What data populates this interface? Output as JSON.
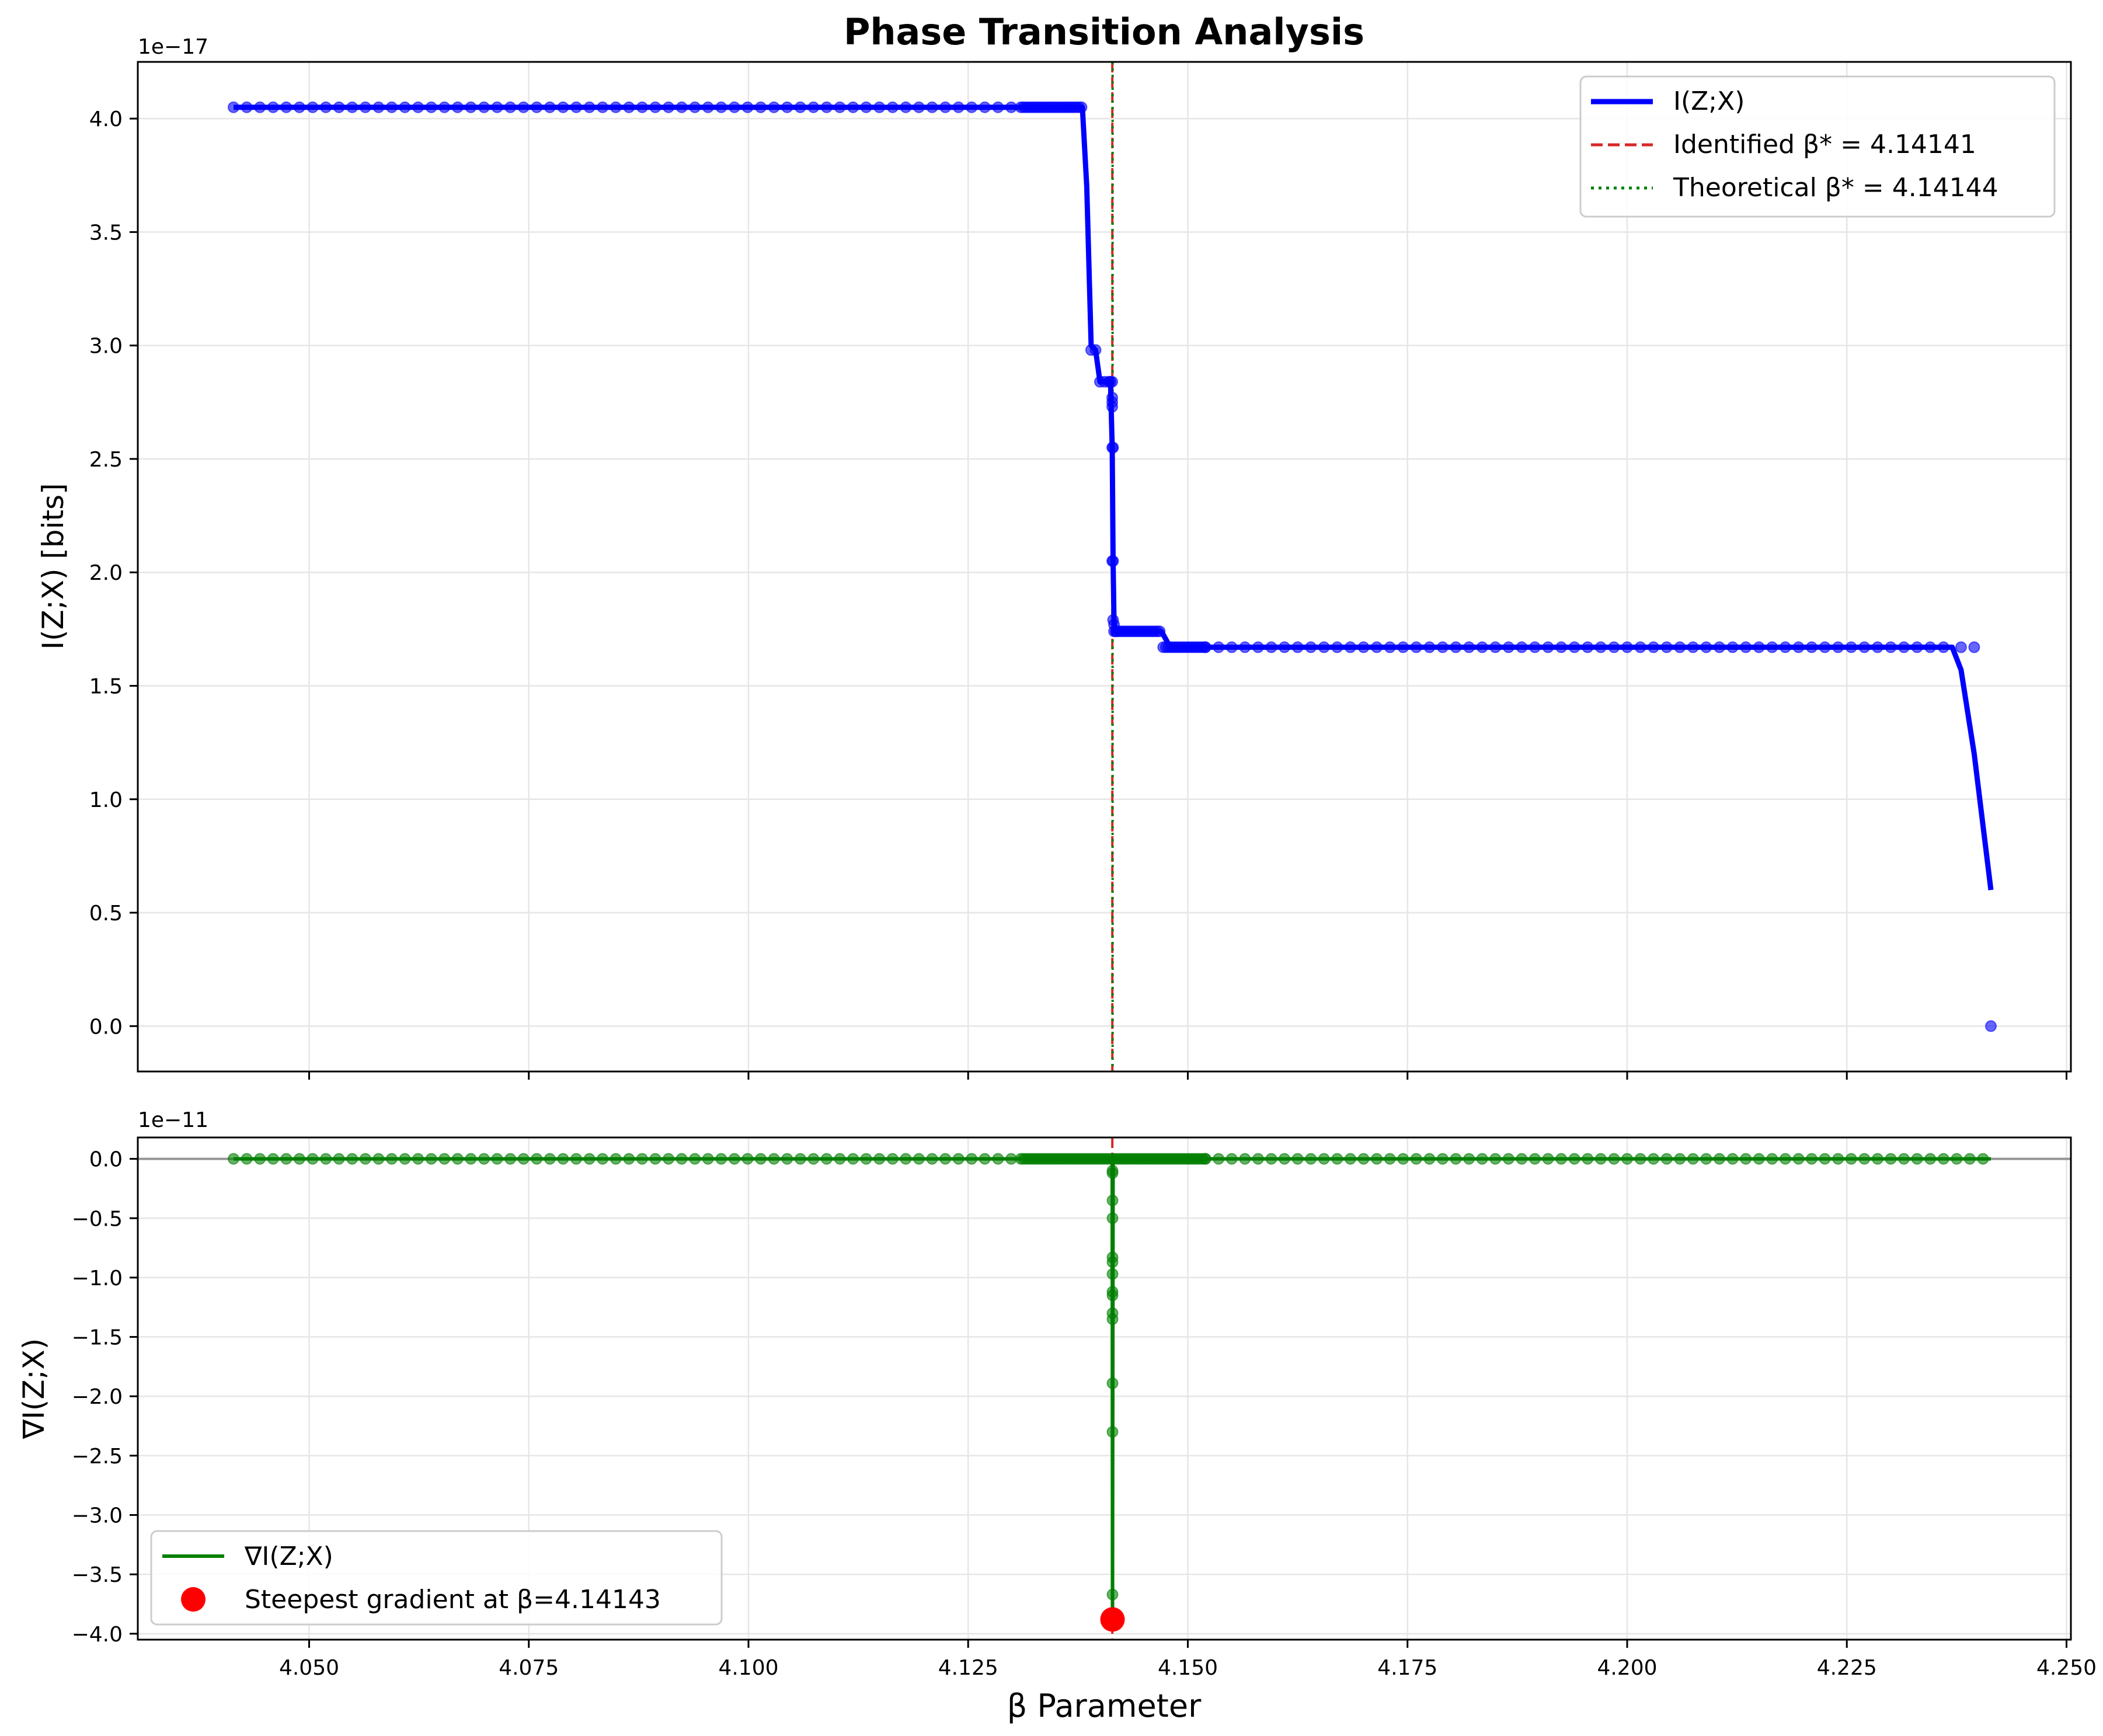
{
  "figure": {
    "title": "Phase Transition Analysis"
  },
  "chart_data": [
    {
      "type": "line",
      "title": "Phase Transition Analysis",
      "xlabel": "",
      "ylabel": "I(Z;X) [bits]",
      "offset_text": "1e−17",
      "xlim": [
        4.0305,
        4.2505
      ],
      "ylim": [
        -0.2,
        4.25
      ],
      "y_scale": "1e-17",
      "xticks": [
        4.05,
        4.075,
        4.1,
        4.125,
        4.15,
        4.175,
        4.2,
        4.225,
        4.25
      ],
      "yticks": [
        0.0,
        0.5,
        1.0,
        1.5,
        2.0,
        2.5,
        3.0,
        3.5,
        4.0
      ],
      "ytick_labels": [
        "0.0",
        "0.5",
        "1.0",
        "1.5",
        "2.0",
        "2.5",
        "3.0",
        "3.5",
        "4.0"
      ],
      "grid": true,
      "legend_position": "upper-right",
      "colors": {
        "line": "#0000ff",
        "identified": "#d62728",
        "theoretical": "#007f00"
      },
      "series": [
        {
          "name": "I(Z;X)",
          "style": "solid",
          "x": [
            4.0414,
            4.1305,
            4.137,
            4.138,
            4.1385,
            4.139,
            4.1395,
            4.14,
            4.1405,
            4.1412,
            4.1414,
            4.1415,
            4.1416,
            4.1418,
            4.142,
            4.145,
            4.147,
            4.148,
            4.152,
            4.235,
            4.237,
            4.238,
            4.2395,
            4.2414
          ],
          "y": [
            4.05,
            4.05,
            4.05,
            4.05,
            3.7,
            3.0,
            2.98,
            2.84,
            2.84,
            2.84,
            2.55,
            2.05,
            1.78,
            1.74,
            1.74,
            1.74,
            1.74,
            1.67,
            1.67,
            1.67,
            1.67,
            1.57,
            1.2,
            0.6
          ]
        },
        {
          "name": "Identified β* = 4.14141",
          "type": "vline",
          "style": "dashed",
          "x": 4.14141
        },
        {
          "name": "Theoretical β* = 4.14144",
          "type": "vline",
          "style": "dotted",
          "x": 4.14144
        }
      ],
      "markers": {
        "x_sparse_left": {
          "start": 4.0414,
          "end": 4.1305,
          "step": 0.0015
        },
        "x_dense_left": {
          "start": 4.131,
          "end": 4.138,
          "step": 0.0003
        },
        "cluster": [
          {
            "x": 4.139,
            "y": 2.98
          },
          {
            "x": 4.1395,
            "y": 2.98
          },
          {
            "x": 4.14,
            "y": 2.84
          },
          {
            "x": 4.1405,
            "y": 2.84
          },
          {
            "x": 4.141,
            "y": 2.84
          },
          {
            "x": 4.1412,
            "y": 2.84
          },
          {
            "x": 4.1414,
            "y": 2.84
          },
          {
            "x": 4.1414,
            "y": 2.77
          },
          {
            "x": 4.1414,
            "y": 2.75
          },
          {
            "x": 4.1414,
            "y": 2.73
          },
          {
            "x": 4.1414,
            "y": 2.55
          },
          {
            "x": 4.1415,
            "y": 2.05
          },
          {
            "x": 4.1415,
            "y": 1.79
          },
          {
            "x": 4.1416,
            "y": 1.77
          },
          {
            "x": 4.1414,
            "y": 2.05
          },
          {
            "x": 4.1415,
            "y": 2.55
          },
          {
            "x": 4.1416,
            "y": 1.74
          },
          {
            "x": 4.1418,
            "y": 1.74
          }
        ],
        "x_plateau_mid": {
          "start": 4.142,
          "end": 4.147,
          "step": 0.0003,
          "y": 1.74
        },
        "x_plateau_low_dense": {
          "start": 4.1472,
          "end": 4.152,
          "step": 0.0003,
          "y": 1.67
        },
        "x_plateau_low_sparse": {
          "start": 4.152,
          "end": 4.237,
          "step": 0.0015,
          "y": 1.67
        },
        "tail": [
          {
            "x": 4.238,
            "y": 1.67
          },
          {
            "x": 4.2395,
            "y": 1.67
          },
          {
            "x": 4.2414,
            "y": 0.0
          }
        ]
      }
    },
    {
      "type": "line",
      "xlabel": "β Parameter",
      "ylabel": "∇I(Z;X)",
      "offset_text": "1e−11",
      "xlim": [
        4.0305,
        4.2505
      ],
      "ylim": [
        -4.05,
        0.18
      ],
      "y_scale": "1e-11",
      "xticks": [
        4.05,
        4.075,
        4.1,
        4.125,
        4.15,
        4.175,
        4.2,
        4.225,
        4.25
      ],
      "xtick_labels": [
        "4.050",
        "4.075",
        "4.100",
        "4.125",
        "4.150",
        "4.175",
        "4.200",
        "4.225",
        "4.250"
      ],
      "yticks": [
        0.0,
        -0.5,
        -1.0,
        -1.5,
        -2.0,
        -2.5,
        -3.0,
        -3.5,
        -4.0
      ],
      "ytick_labels": [
        "0.0",
        "−0.5",
        "−1.0",
        "−1.5",
        "−2.0",
        "−2.5",
        "−3.0",
        "−3.5",
        "−4.0"
      ],
      "grid": true,
      "legend_position": "lower-left",
      "colors": {
        "line": "#007f00",
        "steepest": "#ff0000",
        "zero_line": "#808080",
        "vline": "#d62728"
      },
      "series": [
        {
          "name": "∇I(Z;X)",
          "style": "solid",
          "x": [
            4.0414,
            4.1414,
            4.14143,
            4.1415,
            4.2414
          ],
          "y": [
            0.0,
            0.0,
            -3.88,
            0.0,
            0.0
          ]
        },
        {
          "name": "Steepest gradient at β=4.14143",
          "type": "scatter",
          "x": [
            4.14143
          ],
          "y": [
            -3.88
          ]
        }
      ],
      "spike_points_y": [
        -0.1,
        -0.12,
        -0.35,
        -0.5,
        -0.83,
        -0.87,
        -0.97,
        -1.12,
        -1.15,
        -1.3,
        -1.35,
        -1.89,
        -2.3,
        -3.67
      ],
      "markers": {
        "x_sparse_left": {
          "start": 4.0414,
          "end": 4.1305,
          "step": 0.0015
        },
        "x_dense": {
          "start": 4.131,
          "end": 4.152,
          "step": 0.0003
        },
        "x_sparse_right": {
          "start": 4.152,
          "end": 4.2414,
          "step": 0.0015
        }
      }
    }
  ]
}
